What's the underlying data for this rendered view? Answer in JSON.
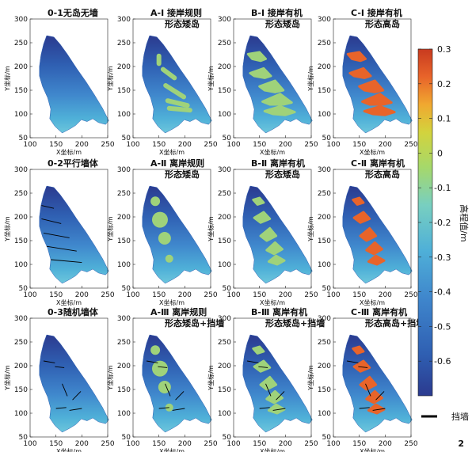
{
  "figure_number": "2",
  "colorbar": {
    "label": "高程值/m",
    "ticks": [
      "0.3",
      "0.2",
      "0.1",
      "0",
      "-0.1",
      "-0.2",
      "-0.3",
      "-0.4",
      "-0.5",
      "-0.6"
    ],
    "range": [
      -0.7,
      0.3
    ],
    "colormap": [
      "#2b3a8f",
      "#2f5fb2",
      "#3f86cc",
      "#4fb0d8",
      "#78cfc0",
      "#a6d86a",
      "#d3d33d",
      "#f0a830",
      "#e8642a",
      "#c83a1f"
    ]
  },
  "legend": {
    "wall_label": "挡墙",
    "wall_color": "#000000"
  },
  "axis": {
    "xlabel": "X坐标/m",
    "ylabel": "Y坐标/m",
    "xticks": [
      "100",
      "150",
      "200",
      "250"
    ],
    "yticks": [
      "300",
      "250",
      "200",
      "150",
      "100",
      "50"
    ]
  },
  "panels": [
    {
      "title_line1": "0-1无岛无墙",
      "title_line2": "",
      "island_color": "",
      "islands": "none",
      "walls": "none"
    },
    {
      "title_line1": "A-Ⅰ 接岸规则",
      "title_line2": "形态矮岛",
      "island_color": "#9fd27a",
      "islands": "bands",
      "walls": "none"
    },
    {
      "title_line1": "B-Ⅰ 接岸有机",
      "title_line2": "形态矮岛",
      "island_color": "#9fd27a",
      "islands": "organic-bank",
      "walls": "none"
    },
    {
      "title_line1": "C-Ⅰ 接岸有机",
      "title_line2": "形态高岛",
      "island_color": "#e8642a",
      "islands": "organic-bank",
      "walls": "none"
    },
    {
      "title_line1": "0-2平行墙体",
      "title_line2": "",
      "island_color": "",
      "islands": "none",
      "walls": "parallel"
    },
    {
      "title_line1": "A-Ⅱ 离岸规则",
      "title_line2": "形态矮岛",
      "island_color": "#9fd27a",
      "islands": "circles",
      "walls": "none"
    },
    {
      "title_line1": "B-Ⅱ 离岸有机",
      "title_line2": "形态矮岛",
      "island_color": "#9fd27a",
      "islands": "organic-off",
      "walls": "none"
    },
    {
      "title_line1": "C-Ⅱ 离岸有机",
      "title_line2": "形态高岛",
      "island_color": "#e8642a",
      "islands": "organic-off",
      "walls": "none"
    },
    {
      "title_line1": "0-3随机墙体",
      "title_line2": "",
      "island_color": "",
      "islands": "none",
      "walls": "random"
    },
    {
      "title_line1": "A-Ⅲ 离岸规则",
      "title_line2": "形态矮岛+挡墙",
      "island_color": "#9fd27a",
      "islands": "circles",
      "walls": "random"
    },
    {
      "title_line1": "B-Ⅲ 离岸有机",
      "title_line2": "形态矮岛+挡墙",
      "island_color": "#9fd27a",
      "islands": "organic-off",
      "walls": "random"
    },
    {
      "title_line1": "C-Ⅲ 离岸有机",
      "title_line2": "形态高岛+挡墙",
      "island_color": "#e8642a",
      "islands": "organic-off",
      "walls": "random"
    }
  ],
  "chart_data": {
    "type": "heatmap",
    "xlabel": "X坐标/m",
    "ylabel": "Y坐标/m",
    "xlim": [
      100,
      250
    ],
    "ylim": [
      50,
      300
    ],
    "colorbar_label": "高程值/m",
    "colorbar_range": [
      -0.7,
      0.3
    ],
    "panels": [
      "0-1无岛无墙",
      "A-Ⅰ 接岸规则形态矮岛",
      "B-Ⅰ 接岸有机形态矮岛",
      "C-Ⅰ 接岸有机形态高岛",
      "0-2平行墙体",
      "A-Ⅱ 离岸规则形态矮岛",
      "B-Ⅱ 离岸有机形态矮岛",
      "C-Ⅱ 离岸有机形态高岛",
      "0-3随机墙体",
      "A-Ⅲ 离岸规则形态矮岛+挡墙",
      "B-Ⅲ 离岸有机形态矮岛+挡墙",
      "C-Ⅲ 离岸有机形态高岛+挡墙"
    ],
    "outline": [
      [
        132,
        265
      ],
      [
        146,
        262
      ],
      [
        158,
        247
      ],
      [
        172,
        226
      ],
      [
        190,
        196
      ],
      [
        208,
        168
      ],
      [
        224,
        141
      ],
      [
        240,
        112
      ],
      [
        252,
        86
      ],
      [
        246,
        78
      ],
      [
        232,
        82
      ],
      [
        221,
        90
      ],
      [
        210,
        84
      ],
      [
        199,
        88
      ],
      [
        188,
        76
      ],
      [
        176,
        68
      ],
      [
        162,
        60
      ],
      [
        148,
        74
      ],
      [
        138,
        90
      ],
      [
        140,
        110
      ],
      [
        134,
        134
      ],
      [
        124,
        158
      ],
      [
        118,
        180
      ],
      [
        118,
        200
      ],
      [
        121,
        224
      ],
      [
        126,
        247
      ]
    ],
    "low_island_elevation": -0.05,
    "high_island_elevation": 0.25
  }
}
